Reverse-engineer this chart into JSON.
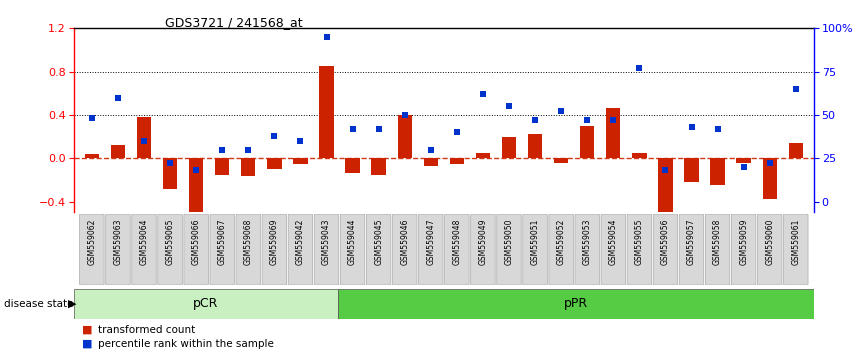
{
  "title": "GDS3721 / 241568_at",
  "samples": [
    "GSM559062",
    "GSM559063",
    "GSM559064",
    "GSM559065",
    "GSM559066",
    "GSM559067",
    "GSM559068",
    "GSM559069",
    "GSM559042",
    "GSM559043",
    "GSM559044",
    "GSM559045",
    "GSM559046",
    "GSM559047",
    "GSM559048",
    "GSM559049",
    "GSM559050",
    "GSM559051",
    "GSM559052",
    "GSM559053",
    "GSM559054",
    "GSM559055",
    "GSM559056",
    "GSM559057",
    "GSM559058",
    "GSM559059",
    "GSM559060",
    "GSM559061"
  ],
  "transformed_count": [
    0.04,
    0.12,
    0.38,
    -0.28,
    -0.5,
    -0.15,
    -0.16,
    -0.1,
    -0.05,
    0.85,
    -0.14,
    -0.15,
    0.4,
    -0.07,
    -0.05,
    0.05,
    0.2,
    0.22,
    -0.04,
    0.3,
    0.46,
    0.05,
    -0.5,
    -0.22,
    -0.25,
    -0.04,
    -0.38,
    0.14
  ],
  "percentile_rank": [
    48,
    60,
    35,
    22,
    18,
    30,
    30,
    38,
    35,
    95,
    42,
    42,
    50,
    30,
    40,
    62,
    55,
    47,
    52,
    47,
    47,
    77,
    18,
    43,
    42,
    20,
    22,
    65
  ],
  "pCR_count": 10,
  "bar_color": "#cc2200",
  "point_color": "#0033cc",
  "ylim_left": [
    -0.5,
    1.2
  ],
  "ylim_right": [
    -0.5,
    1.2
  ],
  "yticks_left": [
    -0.4,
    0.0,
    0.4,
    0.8,
    1.2
  ],
  "yticks_right_vals": [
    -0.4,
    0.0,
    0.4,
    0.8,
    1.2
  ],
  "yticks_right_labels": [
    "0",
    "25",
    "50",
    "75",
    "100%"
  ],
  "hlines_dotted": [
    0.4,
    0.8
  ],
  "zero_line": 0.0,
  "background_color": "#ffffff",
  "legend_items": [
    "transformed count",
    "percentile rank within the sample"
  ],
  "pcr_color": "#c8f0c0",
  "ppr_color": "#55cc44",
  "label_bg": "#d0d0d0"
}
